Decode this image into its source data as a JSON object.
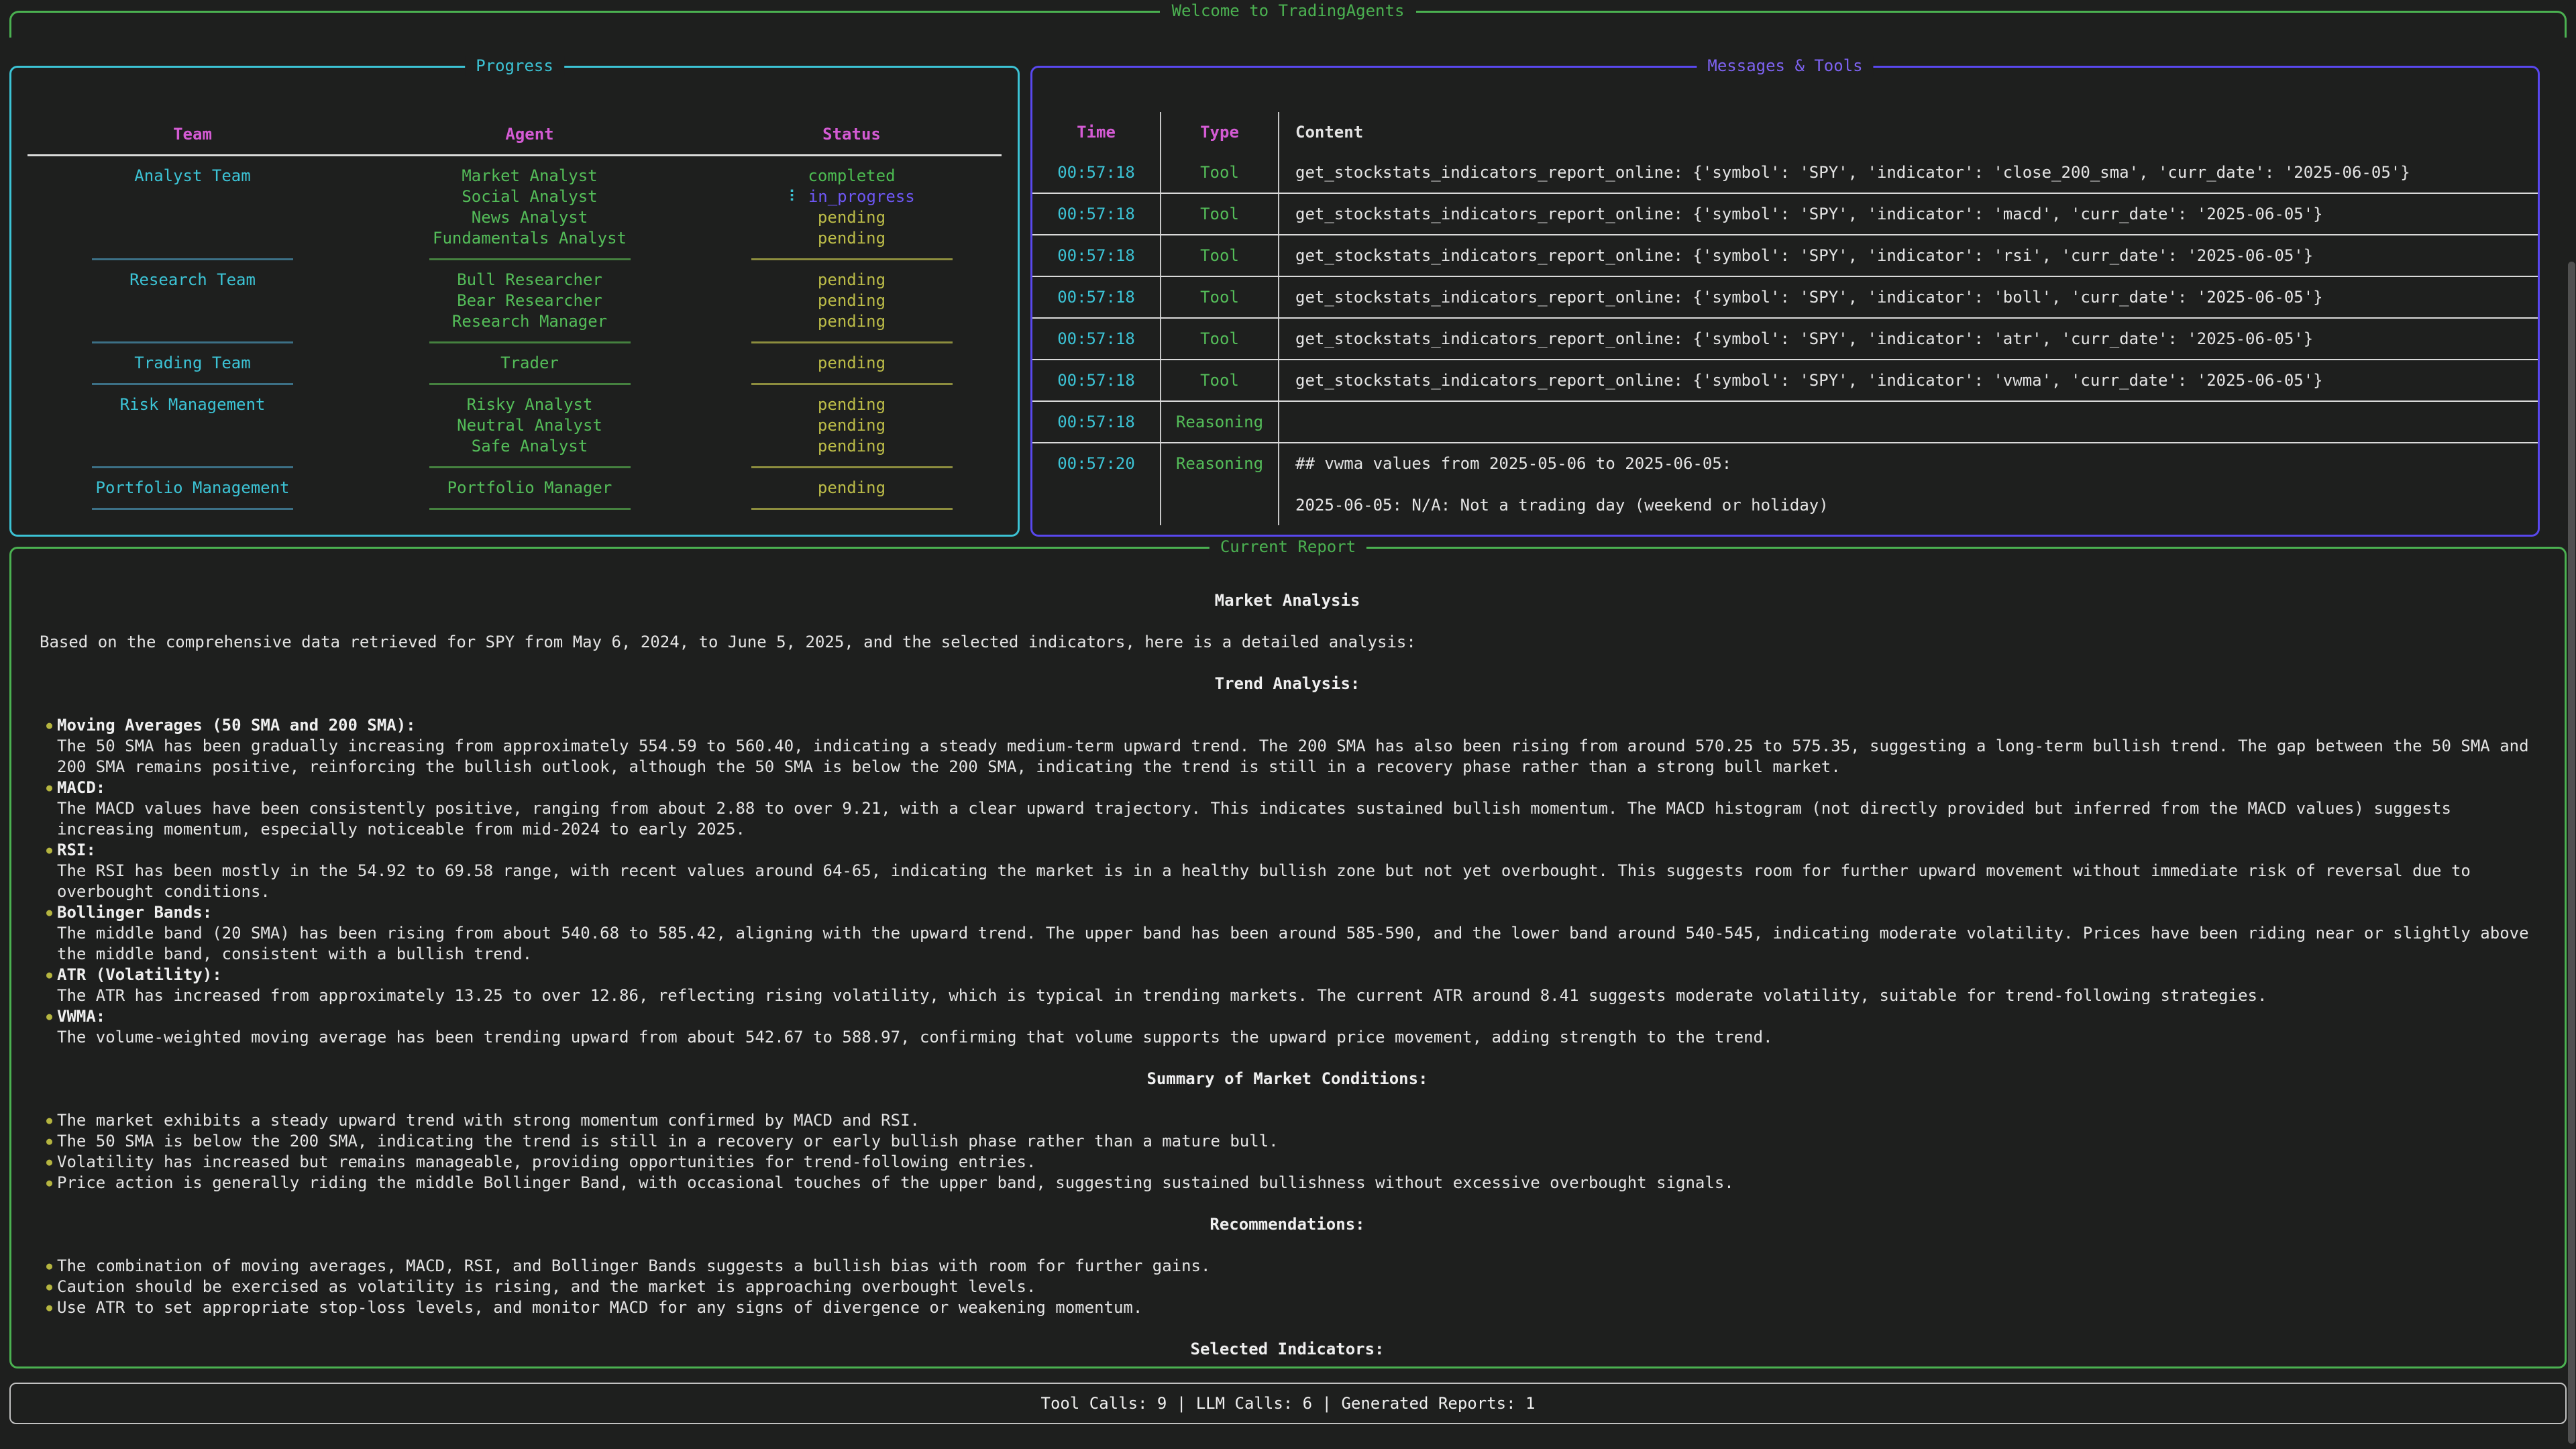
{
  "colors": {
    "bg": "#1e1f1e",
    "green": "#4bb151",
    "cyan": "#3cc3d5",
    "purple_border": "#5948ef",
    "violet_text": "#7e63f2",
    "magenta": "#d45bd4",
    "yellow": "#bcbc48",
    "white": "#e4e4e4",
    "in_progress": "#6e57f5",
    "bullet": "#b5b540"
  },
  "header": {
    "title": "Welcome to TradingAgents"
  },
  "progress": {
    "title": "Progress",
    "columns": [
      "Team",
      "Agent",
      "Status"
    ],
    "spinner_glyph": "⠇",
    "groups": [
      {
        "team": "Analyst Team",
        "agents": [
          {
            "name": "Market Analyst",
            "status": "completed"
          },
          {
            "name": "Social Analyst",
            "status": "in_progress"
          },
          {
            "name": "News Analyst",
            "status": "pending"
          },
          {
            "name": "Fundamentals Analyst",
            "status": "pending"
          }
        ]
      },
      {
        "team": "Research Team",
        "agents": [
          {
            "name": "Bull Researcher",
            "status": "pending"
          },
          {
            "name": "Bear Researcher",
            "status": "pending"
          },
          {
            "name": "Research Manager",
            "status": "pending"
          }
        ]
      },
      {
        "team": "Trading Team",
        "agents": [
          {
            "name": "Trader",
            "status": "pending"
          }
        ]
      },
      {
        "team": "Risk Management",
        "agents": [
          {
            "name": "Risky Analyst",
            "status": "pending"
          },
          {
            "name": "Neutral Analyst",
            "status": "pending"
          },
          {
            "name": "Safe Analyst",
            "status": "pending"
          }
        ]
      },
      {
        "team": "Portfolio Management",
        "agents": [
          {
            "name": "Portfolio Manager",
            "status": "pending"
          }
        ]
      }
    ]
  },
  "messages": {
    "title": "Messages & Tools",
    "columns": [
      "Time",
      "Type",
      "Content"
    ],
    "rows": [
      {
        "time": "00:57:18",
        "type": "Tool",
        "content": "get_stockstats_indicators_report_online: {'symbol': 'SPY', 'indicator': 'close_200_sma', 'curr_date': '2025-06-05'}"
      },
      {
        "time": "00:57:18",
        "type": "Tool",
        "content": "get_stockstats_indicators_report_online: {'symbol': 'SPY', 'indicator': 'macd', 'curr_date': '2025-06-05'}"
      },
      {
        "time": "00:57:18",
        "type": "Tool",
        "content": "get_stockstats_indicators_report_online: {'symbol': 'SPY', 'indicator': 'rsi', 'curr_date': '2025-06-05'}"
      },
      {
        "time": "00:57:18",
        "type": "Tool",
        "content": "get_stockstats_indicators_report_online: {'symbol': 'SPY', 'indicator': 'boll', 'curr_date': '2025-06-05'}"
      },
      {
        "time": "00:57:18",
        "type": "Tool",
        "content": "get_stockstats_indicators_report_online: {'symbol': 'SPY', 'indicator': 'atr', 'curr_date': '2025-06-05'}"
      },
      {
        "time": "00:57:18",
        "type": "Tool",
        "content": "get_stockstats_indicators_report_online: {'symbol': 'SPY', 'indicator': 'vwma', 'curr_date': '2025-06-05'}"
      },
      {
        "time": "00:57:18",
        "type": "Reasoning",
        "content": ""
      },
      {
        "time": "00:57:20",
        "type": "Reasoning",
        "content": "## vwma values from 2025-05-06 to 2025-06-05:\n\n2025-06-05: N/A: Not a trading day (weekend or holiday)"
      }
    ]
  },
  "report": {
    "title": "Current Report",
    "heading": "Market Analysis",
    "intro": "Based on the comprehensive data retrieved for SPY from May 6, 2024, to June 5, 2025, and the selected indicators, here is a detailed analysis:",
    "bullet_glyph": "●",
    "sections": [
      {
        "heading": "Trend Analysis:",
        "bullets": [
          {
            "title": "Moving Averages (50 SMA and 200 SMA):",
            "body": "The 50 SMA has been gradually increasing from approximately 554.59 to 560.40, indicating a steady medium-term upward trend. The 200 SMA has also been rising from around 570.25 to 575.35, suggesting a long-term bullish trend. The gap between the 50 SMA and 200 SMA remains positive, reinforcing the bullish outlook, although the 50 SMA is below the 200 SMA, indicating the trend is still in a recovery phase rather than a strong bull market."
          },
          {
            "title": "MACD:",
            "body": "The MACD values have been consistently positive, ranging from about 2.88 to over 9.21, with a clear upward trajectory. This indicates sustained bullish momentum. The MACD histogram (not directly provided but inferred from the MACD values) suggests increasing momentum, especially noticeable from mid-2024 to early 2025."
          },
          {
            "title": "RSI:",
            "body": "The RSI has been mostly in the 54.92 to 69.58 range, with recent values around 64-65, indicating the market is in a healthy bullish zone but not yet overbought. This suggests room for further upward movement without immediate risk of reversal due to overbought conditions."
          },
          {
            "title": "Bollinger Bands:",
            "body": "The middle band (20 SMA) has been rising from about 540.68 to 585.42, aligning with the upward trend. The upper band has been around 585-590, and the lower band around 540-545, indicating moderate volatility. Prices have been riding near or slightly above the middle band, consistent with a bullish trend."
          },
          {
            "title": "ATR (Volatility):",
            "body": "The ATR has increased from approximately 13.25 to over 12.86, reflecting rising volatility, which is typical in trending markets. The current ATR around 8.41 suggests moderate volatility, suitable for trend-following strategies."
          },
          {
            "title": "VWMA:",
            "body": "The volume-weighted moving average has been trending upward from about 542.67 to 588.97, confirming that volume supports the upward price movement, adding strength to the trend."
          }
        ]
      },
      {
        "heading": "Summary of Market Conditions:",
        "bullets": [
          {
            "body": "The market exhibits a steady upward trend with strong momentum confirmed by MACD and RSI."
          },
          {
            "body": "The 50 SMA is below the 200 SMA, indicating the trend is still in a recovery or early bullish phase rather than a mature bull."
          },
          {
            "body": "Volatility has increased but remains manageable, providing opportunities for trend-following entries."
          },
          {
            "body": "Price action is generally riding the middle Bollinger Band, with occasional touches of the upper band, suggesting sustained bullishness without excessive overbought signals."
          }
        ]
      },
      {
        "heading": "Recommendations:",
        "bullets": [
          {
            "body": "The combination of moving averages, MACD, RSI, and Bollinger Bands suggests a bullish bias with room for further gains."
          },
          {
            "body": "Caution should be exercised as volatility is rising, and the market is approaching overbought levels."
          },
          {
            "body": "Use ATR to set appropriate stop-loss levels, and monitor MACD for any signs of divergence or weakening momentum."
          }
        ]
      },
      {
        "heading": "Selected Indicators:",
        "bullets": []
      }
    ]
  },
  "stats": {
    "text": "Tool Calls: 9 | LLM Calls: 6 | Generated Reports: 1"
  }
}
